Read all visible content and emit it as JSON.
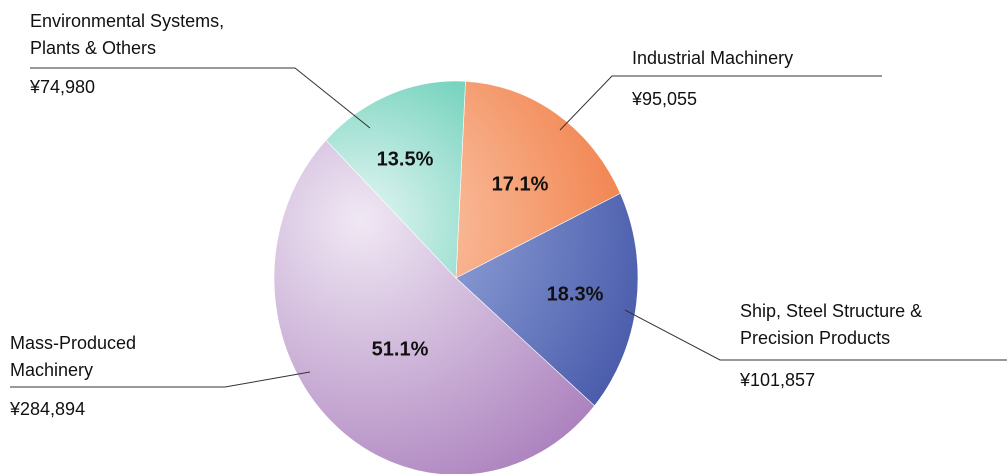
{
  "chart_data": {
    "type": "pie",
    "categories": [
      "Industrial Machinery",
      "Ship, Steel Structure &\nPrecision Products",
      "Mass-Produced\nMachinery",
      "Environmental Systems,\nPlants & Others"
    ],
    "values": [
      17.1,
      18.3,
      51.1,
      13.5
    ],
    "value_labels": [
      "17.1%",
      "18.3%",
      "51.1%",
      "13.5%"
    ],
    "amounts": [
      95055,
      101857,
      284894,
      74980
    ],
    "amount_labels": [
      "¥95,055",
      "¥101,857",
      "¥284,894",
      "¥74,980"
    ],
    "colors": [
      [
        "#fcd2b8",
        "#ef7035"
      ],
      [
        "#a8b8e6",
        "#3c4fa3"
      ],
      [
        "#f0e8f4",
        "#a273b6"
      ],
      [
        "#e6f6f5",
        "#0fb38a"
      ]
    ]
  }
}
